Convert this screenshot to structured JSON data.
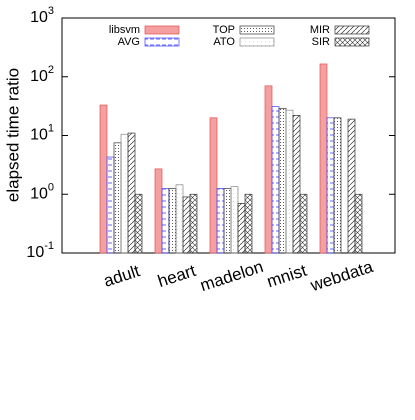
{
  "chart_data": {
    "type": "bar",
    "y_label": "elapsed time ratio",
    "log_scale": true,
    "categories": [
      "adult",
      "heart",
      "madelon",
      "mnist",
      "webdata"
    ],
    "series": [
      {
        "name": "libsvm",
        "color": "#f4a0a0",
        "hatch": "solid",
        "values": [
          33,
          2.7,
          20,
          70,
          165
        ]
      },
      {
        "name": "AVG",
        "color": "#4040ff",
        "hatch": "dash",
        "values": [
          4.3,
          1.25,
          1.25,
          31,
          20
        ]
      },
      {
        "name": "TOP",
        "color": "#333333",
        "hatch": "dots",
        "values": [
          7.5,
          1.25,
          1.25,
          29,
          20
        ]
      },
      {
        "name": "ATO",
        "color": "#888888",
        "hatch": "fine",
        "values": [
          10.5,
          1.45,
          1.35,
          27,
          null
        ]
      },
      {
        "name": "MIR",
        "color": "#333333",
        "hatch": "diagonal",
        "values": [
          11,
          0.9,
          0.7,
          22,
          19
        ]
      },
      {
        "name": "SIR",
        "color": "#333333",
        "hatch": "cross",
        "values": [
          1.0,
          1.0,
          1.0,
          1.0,
          1.0
        ]
      }
    ],
    "ylim": [
      0.1,
      1000
    ],
    "yticks": [
      {
        "value": 0.1,
        "label": "10",
        "exponent": "-1"
      },
      {
        "value": 1,
        "label": "10",
        "exponent": "0"
      },
      {
        "value": 10,
        "label": "10",
        "exponent": "1"
      },
      {
        "value": 100,
        "label": "10",
        "exponent": "2"
      },
      {
        "value": 1000,
        "label": "10",
        "exponent": "3"
      }
    ]
  }
}
